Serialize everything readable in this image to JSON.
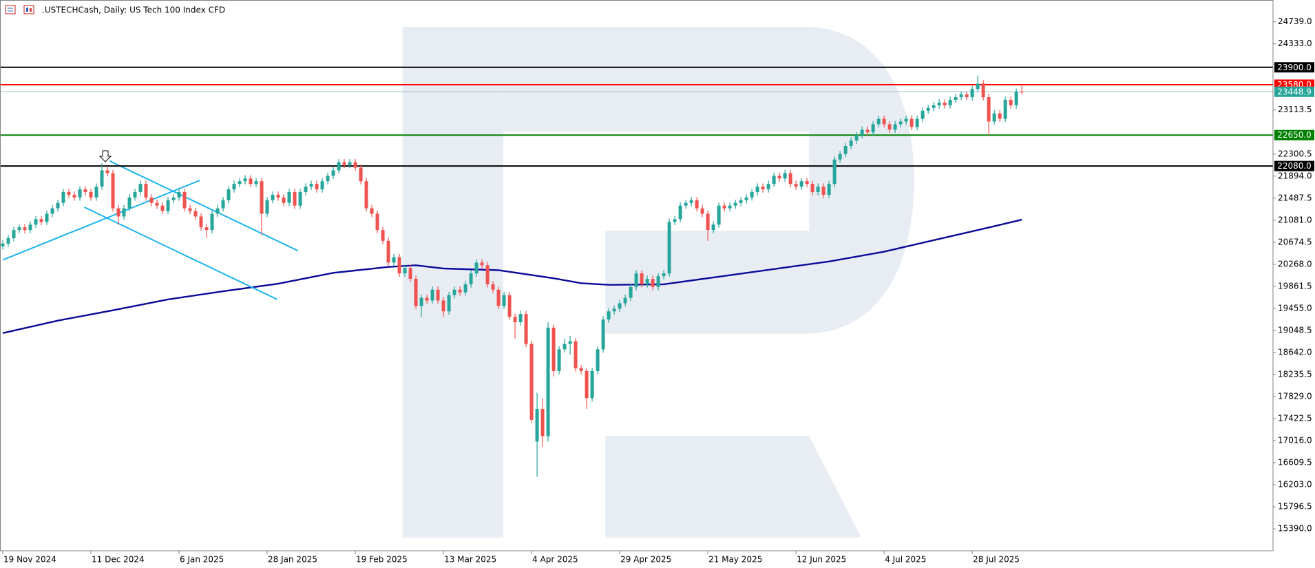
{
  "header": {
    "title": ".USTECHCash, Daily:  US Tech 100 Index CFD"
  },
  "chart_data": {
    "type": "candlestick",
    "up_color": "#26a69a",
    "down_color": "#ef5350",
    "open": [
      20600,
      20650,
      20750,
      20900,
      20950,
      20900,
      21000,
      21100,
      21050,
      21200,
      21300,
      21400,
      21600,
      21550,
      21500,
      21650,
      21600,
      21500,
      21700,
      22000,
      21950,
      21300,
      21150,
      21300,
      21500,
      21600,
      21750,
      21500,
      21400,
      21350,
      21250,
      21450,
      21500,
      21600,
      21300,
      21250,
      21150,
      20950,
      20900,
      21200,
      21300,
      21450,
      21650,
      21750,
      21800,
      21850,
      21750,
      21800,
      21200,
      21450,
      21550,
      21500,
      21400,
      21600,
      21350,
      21600,
      21700,
      21750,
      21650,
      21800,
      21900,
      22000,
      22150,
      22100,
      22150,
      22050,
      21800,
      21300,
      21200,
      20900,
      20700,
      20300,
      20400,
      20100,
      20200,
      20000,
      19500,
      19650,
      19600,
      19800,
      19600,
      19400,
      19700,
      19800,
      19750,
      19900,
      20100,
      20300,
      20250,
      19900,
      19800,
      19500,
      19700,
      19300,
      19200,
      19350,
      18800,
      17000,
      17600,
      17100,
      19100,
      18300,
      18700,
      18800,
      18850,
      18350,
      18300,
      17800,
      18300,
      18700,
      19250,
      19400,
      19450,
      19550,
      19650,
      19850,
      20100,
      19900,
      20000,
      19850,
      20050,
      20100,
      21050,
      21100,
      21350,
      21400,
      21450,
      21300,
      21200,
      20900,
      21000,
      21350,
      21300,
      21350,
      21400,
      21450,
      21500,
      21600,
      21700,
      21650,
      21750,
      21900,
      21850,
      21950,
      21750,
      21700,
      21800,
      21750,
      21600,
      21700,
      21550,
      21750,
      22200,
      22300,
      22450,
      22550,
      22650,
      22750,
      22700,
      22850,
      22950,
      22850,
      22750,
      22850,
      22900,
      22950,
      22800,
      22950,
      23100,
      23150,
      23200,
      23250,
      23200,
      23300,
      23350,
      23400,
      23350,
      23500,
      23600,
      23350,
      22900,
      23050,
      22950,
      23300,
      23200,
      23450
    ],
    "high": [
      20710,
      20810,
      20960,
      21010,
      21010,
      21060,
      21160,
      21160,
      21260,
      21360,
      21460,
      21660,
      21660,
      21610,
      21710,
      21710,
      21660,
      21760,
      22130,
      22060,
      22010,
      21360,
      21360,
      21560,
      21660,
      21810,
      21810,
      21560,
      21460,
      21410,
      21510,
      21560,
      21660,
      21660,
      21360,
      21310,
      21210,
      21010,
      21260,
      21360,
      21510,
      21710,
      21810,
      21860,
      21910,
      21910,
      21860,
      21860,
      21510,
      21610,
      21610,
      21560,
      21660,
      21660,
      21660,
      21760,
      21810,
      21810,
      21860,
      21960,
      22060,
      22210,
      22210,
      22210,
      22210,
      22110,
      21860,
      21360,
      21260,
      20960,
      20760,
      20460,
      20460,
      20260,
      20260,
      20060,
      19710,
      19710,
      19860,
      19860,
      19660,
      19760,
      19860,
      19860,
      19960,
      20160,
      20360,
      20360,
      20310,
      19960,
      19860,
      19760,
      19760,
      19360,
      19410,
      19410,
      18860,
      17900,
      17800,
      19200,
      19160,
      18760,
      18900,
      18950,
      18910,
      18410,
      18360,
      18360,
      18760,
      19310,
      19460,
      19510,
      19610,
      19710,
      19910,
      20160,
      20160,
      20060,
      20060,
      20110,
      20160,
      21110,
      21160,
      21410,
      21460,
      21510,
      21510,
      21360,
      21260,
      21060,
      21410,
      21410,
      21410,
      21460,
      21510,
      21560,
      21660,
      21760,
      21760,
      21810,
      21960,
      21960,
      22010,
      22010,
      21810,
      21860,
      21860,
      21810,
      21760,
      21760,
      21810,
      22260,
      22360,
      22510,
      22610,
      22710,
      22810,
      22810,
      22910,
      23010,
      23010,
      22910,
      22910,
      22960,
      23010,
      23010,
      23010,
      23160,
      23210,
      23260,
      23310,
      23310,
      23360,
      23410,
      23460,
      23460,
      23560,
      23750,
      23660,
      23410,
      23110,
      23110,
      23360,
      23360,
      23510,
      23560
    ],
    "low": [
      20540,
      20590,
      20690,
      20840,
      20840,
      20840,
      20940,
      20990,
      20990,
      21140,
      21240,
      21340,
      21490,
      21440,
      21440,
      21540,
      21440,
      21440,
      21640,
      21890,
      21240,
      21000,
      21090,
      21240,
      21440,
      21540,
      21440,
      21340,
      21290,
      21190,
      21190,
      21390,
      21440,
      21240,
      21190,
      21090,
      20890,
      20750,
      20840,
      21140,
      21240,
      21390,
      21590,
      21690,
      21740,
      21690,
      21690,
      20800,
      21140,
      21390,
      21440,
      21340,
      21340,
      21290,
      21290,
      21540,
      21640,
      21590,
      21590,
      21740,
      21840,
      21940,
      22040,
      22040,
      21990,
      21740,
      21240,
      21140,
      20840,
      20640,
      20240,
      20240,
      20040,
      20040,
      19940,
      19440,
      19300,
      19540,
      19540,
      19540,
      19300,
      19340,
      19640,
      19690,
      19690,
      19840,
      20040,
      20190,
      19840,
      19740,
      19440,
      19440,
      19240,
      18900,
      19140,
      18740,
      17340,
      16350,
      16900,
      17000,
      18200,
      18240,
      18640,
      18600,
      18290,
      18240,
      17600,
      17740,
      18240,
      18640,
      19190,
      19340,
      19390,
      19490,
      19590,
      19790,
      19840,
      19840,
      19790,
      19790,
      19990,
      20040,
      20990,
      21040,
      21290,
      21340,
      21240,
      21140,
      20700,
      20840,
      20940,
      21240,
      21240,
      21290,
      21340,
      21390,
      21440,
      21540,
      21590,
      21590,
      21690,
      21790,
      21790,
      21690,
      21640,
      21640,
      21690,
      21540,
      21540,
      21490,
      21490,
      21690,
      22140,
      22240,
      22390,
      22490,
      22590,
      22640,
      22640,
      22790,
      22790,
      22690,
      22690,
      22790,
      22840,
      22740,
      22740,
      22890,
      23040,
      23090,
      23140,
      23140,
      23140,
      23240,
      23290,
      23290,
      23290,
      23440,
      23290,
      22650,
      22840,
      22890,
      22890,
      23140,
      23140,
      23400
    ],
    "close": [
      20650,
      20750,
      20900,
      20950,
      20900,
      21000,
      21100,
      21050,
      21200,
      21300,
      21400,
      21600,
      21550,
      21500,
      21650,
      21600,
      21500,
      21700,
      22000,
      21950,
      21300,
      21150,
      21300,
      21500,
      21600,
      21750,
      21500,
      21400,
      21350,
      21250,
      21450,
      21500,
      21600,
      21300,
      21250,
      21150,
      20950,
      20900,
      21200,
      21300,
      21450,
      21650,
      21750,
      21800,
      21850,
      21750,
      21800,
      21200,
      21450,
      21550,
      21500,
      21400,
      21600,
      21350,
      21600,
      21700,
      21750,
      21650,
      21800,
      21900,
      22000,
      22150,
      22100,
      22150,
      22050,
      21800,
      21300,
      21200,
      20900,
      20700,
      20300,
      20400,
      20100,
      20200,
      20000,
      19500,
      19650,
      19600,
      19800,
      19600,
      19400,
      19700,
      19800,
      19750,
      19900,
      20100,
      20300,
      20250,
      19900,
      19800,
      19500,
      19700,
      19300,
      19200,
      19350,
      18800,
      17400,
      17600,
      17100,
      19100,
      18300,
      18700,
      18800,
      18850,
      18350,
      18300,
      17800,
      18300,
      18700,
      19250,
      19400,
      19450,
      19550,
      19650,
      19850,
      20100,
      19900,
      20000,
      19850,
      20050,
      20100,
      21050,
      21100,
      21350,
      21400,
      21450,
      21300,
      21200,
      20900,
      21000,
      21350,
      21300,
      21350,
      21400,
      21450,
      21500,
      21600,
      21700,
      21650,
      21750,
      21900,
      21850,
      21950,
      21750,
      21700,
      21800,
      21750,
      21600,
      21700,
      21550,
      21750,
      22200,
      22300,
      22450,
      22550,
      22650,
      22750,
      22700,
      22850,
      22950,
      22850,
      22750,
      22850,
      22900,
      22950,
      22800,
      22950,
      23100,
      23150,
      23200,
      23250,
      23200,
      23300,
      23350,
      23400,
      23350,
      23500,
      23600,
      23350,
      22900,
      23050,
      22950,
      23300,
      23200,
      23450,
      23448.9
    ],
    "xlim": [
      -0.5,
      230.6
    ],
    "xticks": [
      {
        "value": 0,
        "label": "19 Nov 2024"
      },
      {
        "value": 16,
        "label": "11 Dec 2024"
      },
      {
        "value": 32,
        "label": "6 Jan 2025"
      },
      {
        "value": 48,
        "label": "28 Jan 2025"
      },
      {
        "value": 64,
        "label": "19 Feb 2025"
      },
      {
        "value": 80,
        "label": "13 Mar 2025"
      },
      {
        "value": 96,
        "label": "4 Apr 2025"
      },
      {
        "value": 112,
        "label": "29 Apr 2025"
      },
      {
        "value": 128,
        "label": "21 May 2025"
      },
      {
        "value": 144,
        "label": "12 Jun 2025"
      },
      {
        "value": 160,
        "label": "4 Jul 2025"
      },
      {
        "value": 176,
        "label": "28 Jul 2025"
      }
    ],
    "ylim": [
      14986,
      25141
    ],
    "yticks": [
      {
        "value": 24739,
        "label": "24739.0"
      },
      {
        "value": 24333,
        "label": "24333.0"
      },
      {
        "value": 23113.5,
        "label": "23113.5"
      },
      {
        "value": 22300.5,
        "label": "22300.5"
      },
      {
        "value": 21894,
        "label": "21894.0"
      },
      {
        "value": 21487.5,
        "label": "21487.5"
      },
      {
        "value": 21081,
        "label": "21081.0"
      },
      {
        "value": 20674.5,
        "label": "20674.5"
      },
      {
        "value": 20268,
        "label": "20268.0"
      },
      {
        "value": 19861.5,
        "label": "19861.5"
      },
      {
        "value": 19455,
        "label": "19455.0"
      },
      {
        "value": 19048.5,
        "label": "19048.5"
      },
      {
        "value": 18642,
        "label": "18642.0"
      },
      {
        "value": 18235.5,
        "label": "18235.5"
      },
      {
        "value": 17829,
        "label": "17829.0"
      },
      {
        "value": 17422.5,
        "label": "17422.5"
      },
      {
        "value": 17016,
        "label": "17016.0"
      },
      {
        "value": 16609.5,
        "label": "16609.5"
      },
      {
        "value": 16203,
        "label": "16203.0"
      },
      {
        "value": 15796.5,
        "label": "15796.5"
      },
      {
        "value": 15390,
        "label": "15390.0"
      }
    ],
    "moving_average": {
      "color": "#0a0a9a",
      "x": [
        0,
        10,
        20,
        30,
        40,
        50,
        60,
        70,
        75,
        80,
        90,
        100,
        105,
        110,
        120,
        130,
        140,
        150,
        160,
        170,
        180,
        185
      ],
      "values": [
        19000,
        19230,
        19420,
        19620,
        19770,
        19910,
        20110,
        20220,
        20250,
        20190,
        20160,
        20010,
        19920,
        19890,
        19900,
        20040,
        20180,
        20320,
        20500,
        20735,
        20970,
        21090
      ]
    },
    "trendlines": [
      {
        "color": "#1eb4f0",
        "x": [
          0,
          35.8
        ],
        "values": [
          20348,
          21817
        ]
      },
      {
        "color": "#1eb4f0",
        "x": [
          14.8,
          49.8
        ],
        "values": [
          21322,
          19622
        ]
      },
      {
        "color": "#1eb4f0",
        "x": [
          19.4,
          53.6
        ],
        "values": [
          22173,
          20518
        ]
      }
    ],
    "levels": [
      {
        "value": 23900,
        "label": "23900.0",
        "color": "#000000"
      },
      {
        "value": 23580,
        "label": "23580.0",
        "color": "#ff0000"
      },
      {
        "value": 22650,
        "label": "22650.0",
        "color": "#008000"
      },
      {
        "value": 22080,
        "label": "22080.0",
        "color": "#000000"
      }
    ],
    "last_price": {
      "value": 23448.9,
      "color": "#26a69a"
    }
  }
}
